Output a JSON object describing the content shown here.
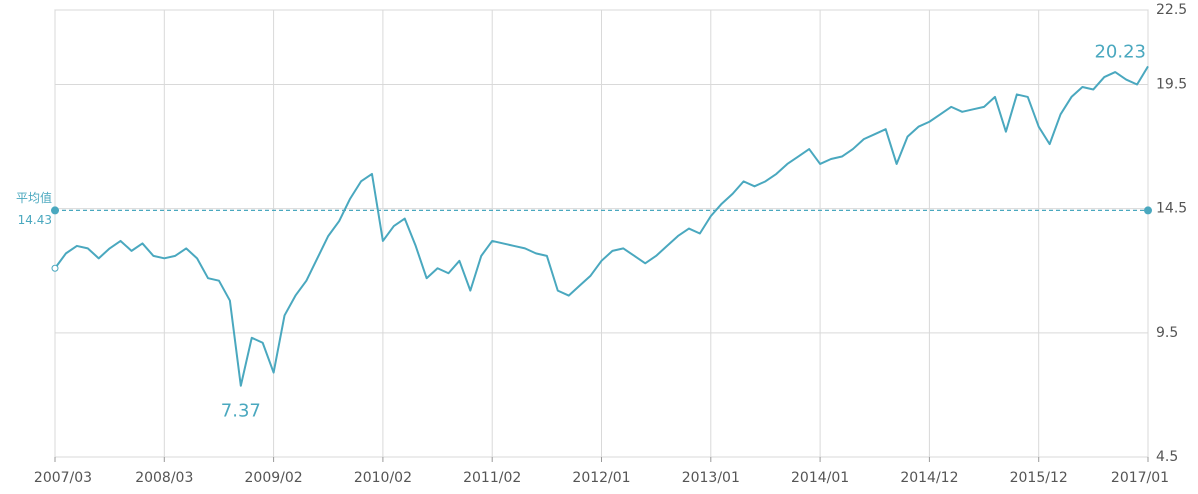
{
  "chart_data": {
    "type": "line",
    "categories": [
      "2007/03",
      null,
      null,
      null,
      null,
      null,
      null,
      null,
      null,
      null,
      "2008/03",
      null,
      null,
      null,
      null,
      null,
      null,
      null,
      null,
      null,
      "2009/02",
      null,
      null,
      null,
      null,
      null,
      null,
      null,
      null,
      null,
      "2010/02",
      null,
      null,
      null,
      null,
      null,
      null,
      null,
      null,
      null,
      "2011/02",
      null,
      null,
      null,
      null,
      null,
      null,
      null,
      null,
      null,
      "2012/01",
      null,
      null,
      null,
      null,
      null,
      null,
      null,
      null,
      null,
      "2013/01",
      null,
      null,
      null,
      null,
      null,
      null,
      null,
      null,
      null,
      "2014/01",
      null,
      null,
      null,
      null,
      null,
      null,
      null,
      null,
      null,
      "2014/12",
      null,
      null,
      null,
      null,
      null,
      null,
      null,
      null,
      null,
      "2015/12",
      null,
      null,
      null,
      null,
      null,
      null,
      null,
      null,
      null,
      "2017/01"
    ],
    "series": [
      {
        "color": "#4aa8bf",
        "values": [
          12.1,
          12.7,
          13.0,
          12.9,
          12.5,
          12.9,
          13.2,
          12.8,
          13.1,
          12.6,
          12.5,
          12.6,
          12.9,
          12.5,
          11.7,
          11.6,
          10.8,
          7.37,
          9.3,
          9.1,
          7.9,
          10.2,
          11.0,
          11.6,
          12.5,
          13.4,
          14.0,
          14.9,
          15.6,
          15.9,
          13.2,
          13.8,
          14.1,
          13.0,
          11.7,
          12.1,
          11.9,
          12.4,
          11.2,
          12.6,
          13.2,
          13.1,
          13.0,
          12.9,
          12.7,
          12.6,
          11.2,
          11.0,
          11.4,
          11.8,
          12.4,
          12.8,
          12.9,
          12.6,
          12.3,
          12.6,
          13.0,
          13.4,
          13.7,
          13.5,
          14.2,
          14.7,
          15.1,
          15.6,
          15.4,
          15.6,
          15.9,
          16.3,
          16.6,
          16.9,
          16.3,
          16.5,
          16.6,
          16.9,
          17.3,
          17.5,
          17.7,
          16.3,
          17.4,
          17.8,
          18.0,
          18.3,
          18.6,
          18.4,
          18.5,
          18.6,
          19.0,
          17.6,
          19.1,
          19.0,
          17.8,
          17.1,
          18.3,
          19.0,
          19.4,
          19.3,
          19.8,
          20.0,
          19.7,
          19.5,
          20.23
        ]
      }
    ],
    "mean": {
      "label": "平均值",
      "value": 14.43
    },
    "ylim": [
      4.5,
      22.5
    ],
    "yticks": [
      4.5,
      9.5,
      14.5,
      19.5,
      22.5
    ],
    "y_axis_side": "right",
    "grid": true
  }
}
